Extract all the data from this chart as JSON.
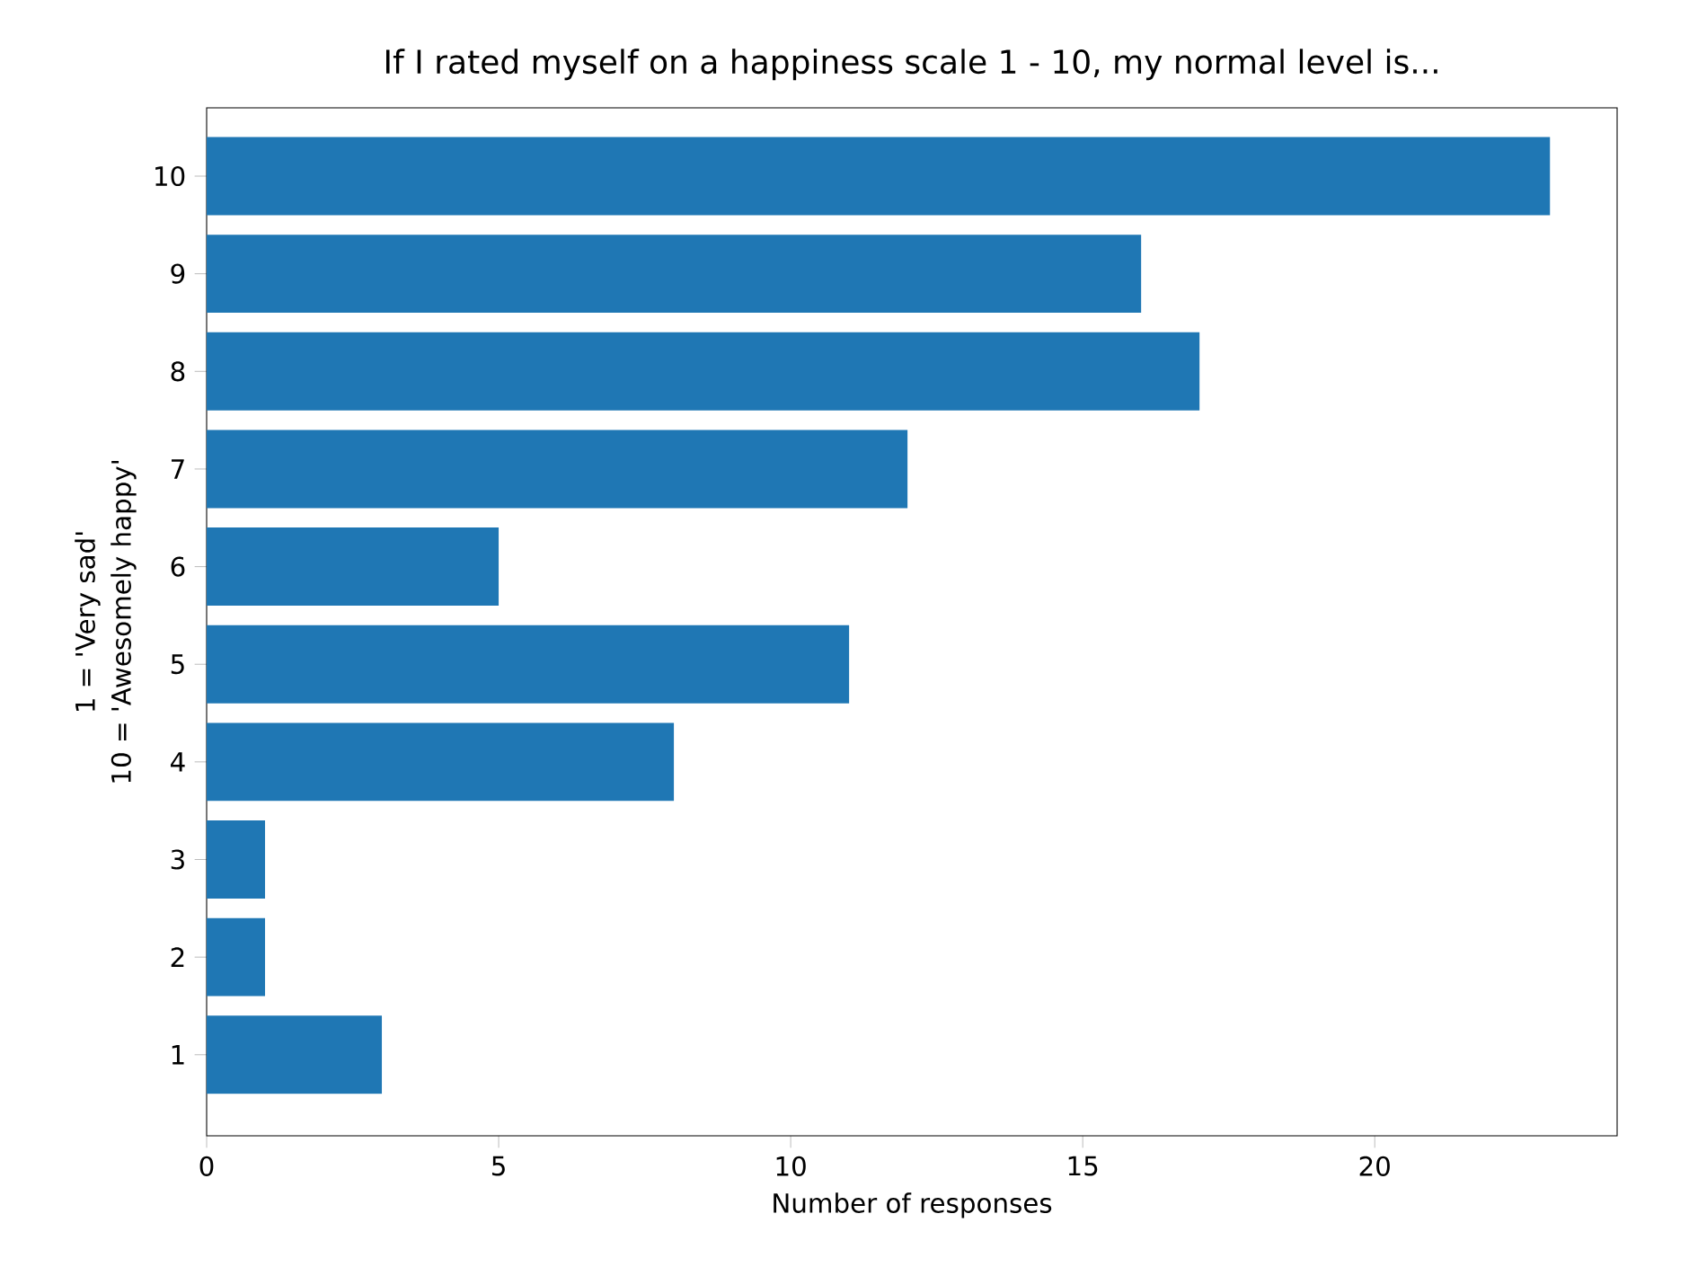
{
  "chart_data": {
    "type": "bar",
    "orientation": "horizontal",
    "title": "If I rated myself on a happiness scale 1 - 10, my normal level is...",
    "xlabel": "Number of responses",
    "ylabel": [
      "1 = 'Very sad'",
      "10 = 'Awesomely happy'"
    ],
    "categories": [
      "10",
      "9",
      "8",
      "7",
      "6",
      "5",
      "4",
      "3",
      "2",
      "1"
    ],
    "values": [
      23,
      16,
      17,
      12,
      5,
      11,
      8,
      1,
      1,
      3
    ],
    "color": "#1f77b4",
    "xlim": [
      0,
      24.15
    ],
    "xticks": [
      0,
      5,
      10,
      15,
      20
    ],
    "grid": false
  }
}
